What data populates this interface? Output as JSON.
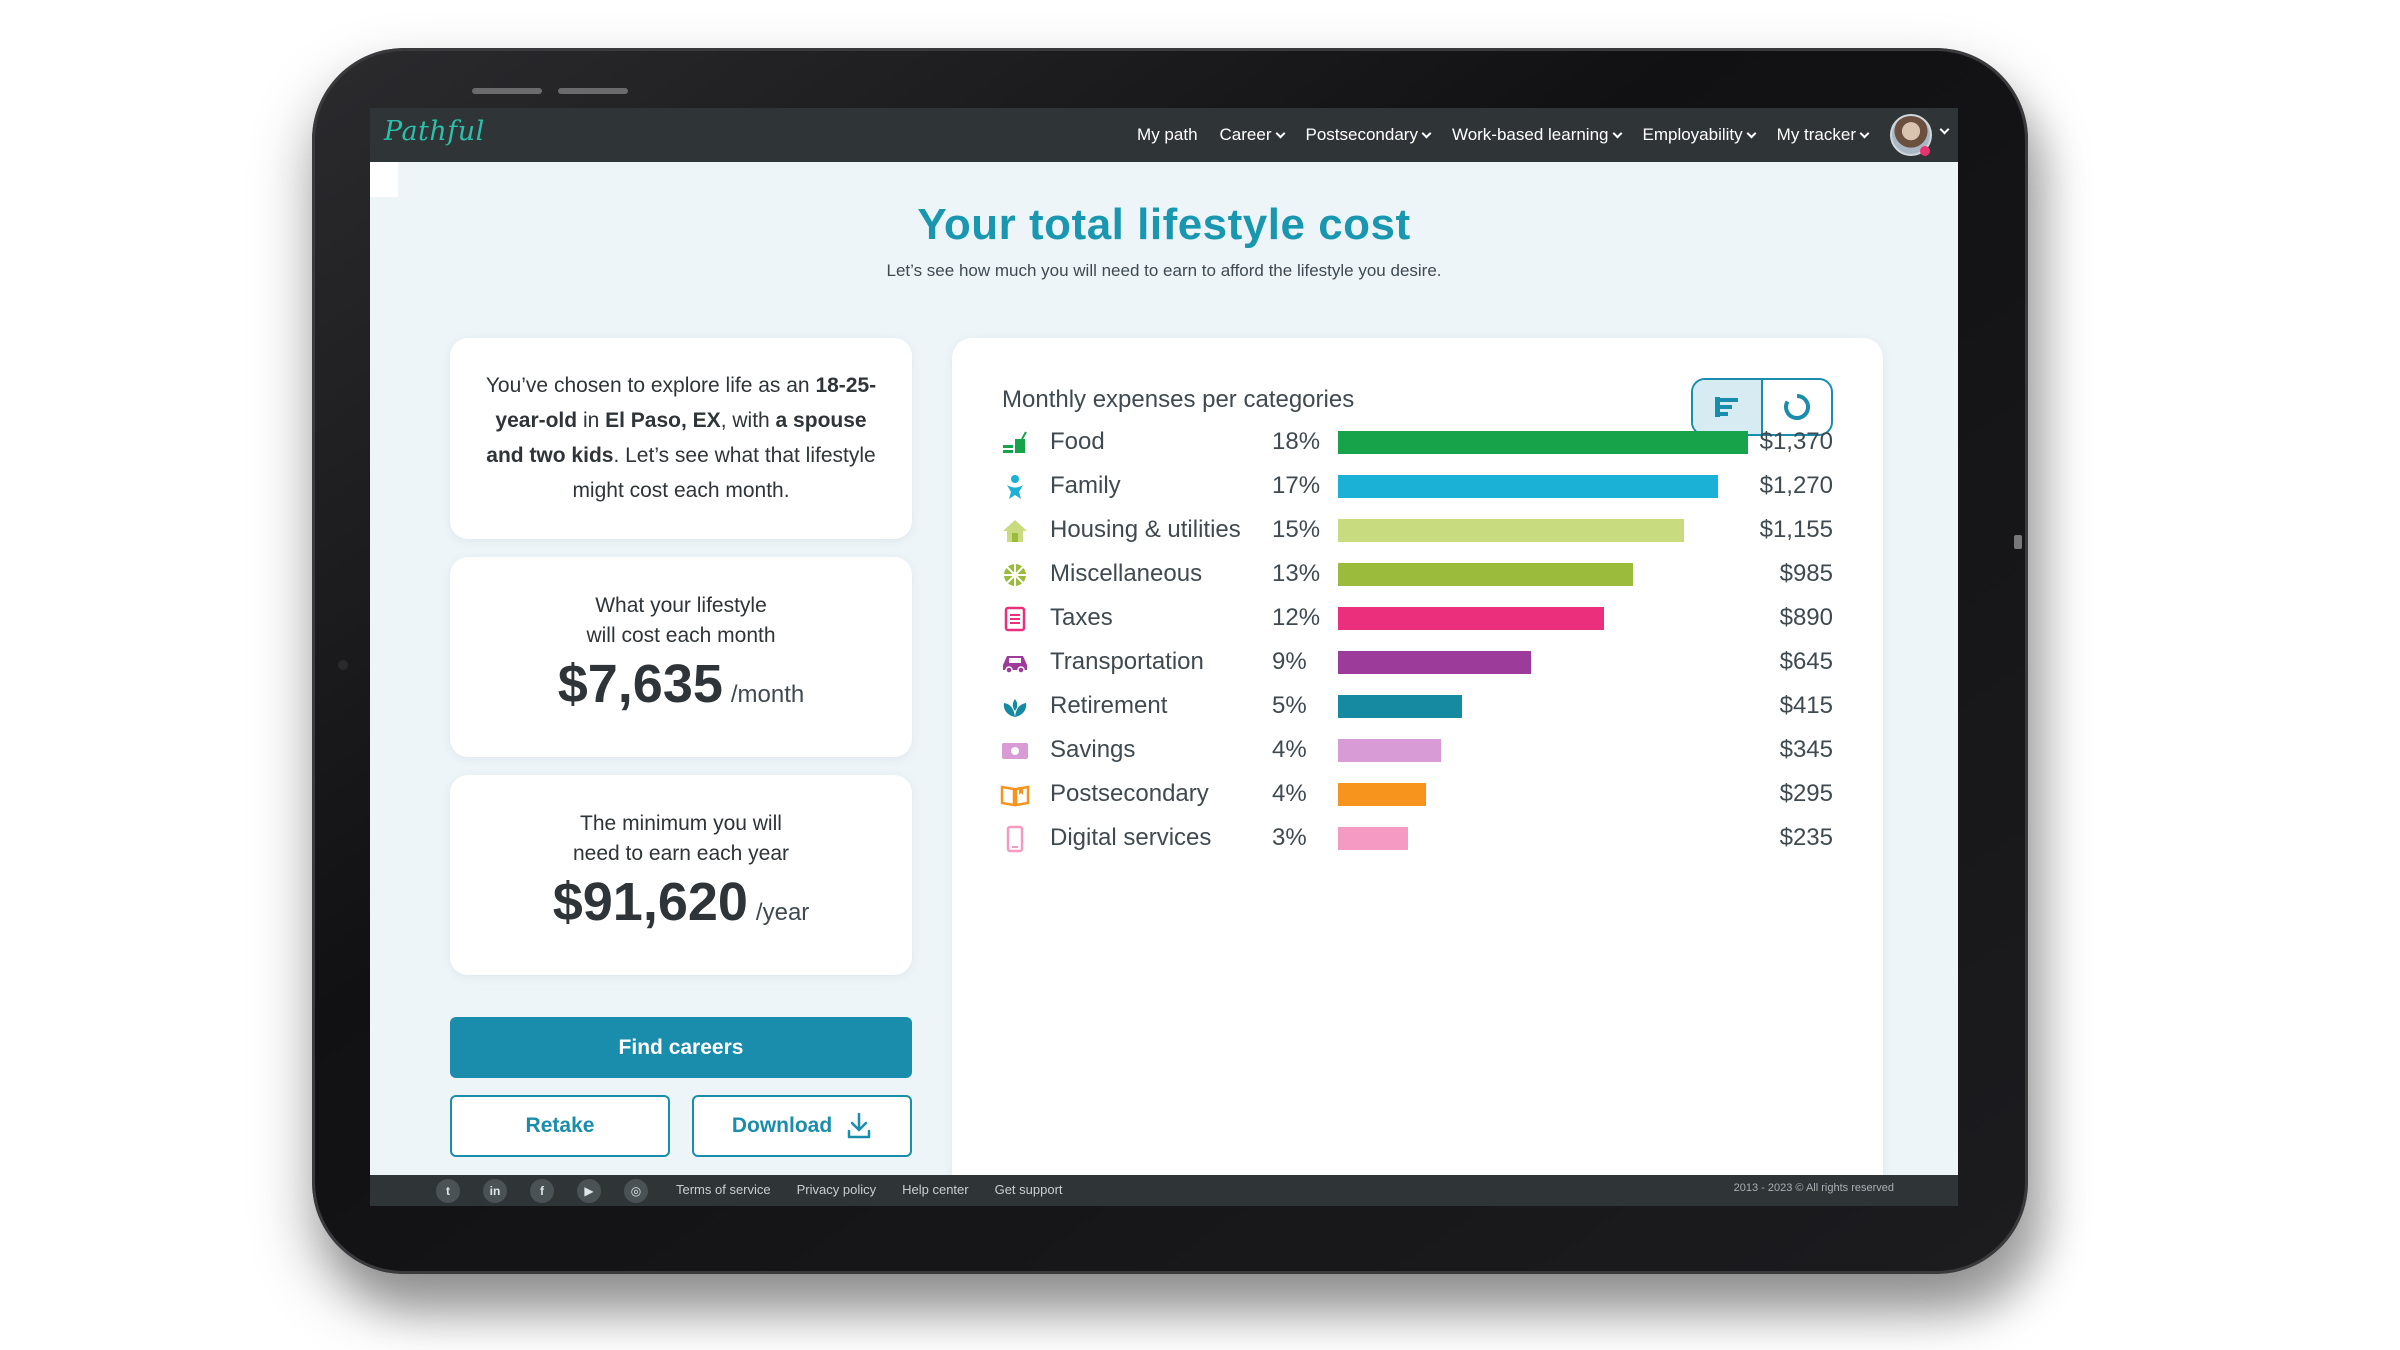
{
  "nav": {
    "logo": "Pathful",
    "items": [
      {
        "label": "My path",
        "dropdown": false
      },
      {
        "label": "Career",
        "dropdown": true
      },
      {
        "label": "Postsecondary",
        "dropdown": true
      },
      {
        "label": "Work-based learning",
        "dropdown": true
      },
      {
        "label": "Employability",
        "dropdown": true
      },
      {
        "label": "My tracker",
        "dropdown": true
      }
    ]
  },
  "header": {
    "title": "Your total lifestyle cost",
    "subtitle": "Let’s see how much you will need to earn to afford the lifestyle you desire."
  },
  "intro": {
    "t1": "You’ve chosen to explore life as an ",
    "age": "18-25-year-old",
    "t2": " in ",
    "city": "El Paso, EX",
    "t3": ", with ",
    "family": "a spouse and two kids",
    "t4": ".  Let’s see what that lifestyle might cost each month."
  },
  "monthly": {
    "label": "What your lifestyle will cost each month",
    "amount": "$7,635",
    "unit": "/month"
  },
  "yearly": {
    "label": "The minimum you will need to earn each year",
    "amount": "$91,620",
    "unit": "/year"
  },
  "buttons": {
    "find": "Find careers",
    "retake": "Retake",
    "download": "Download"
  },
  "chart_data": {
    "type": "bar",
    "title": "Monthly expenses per categories",
    "view_options": [
      "bar-chart-icon",
      "donut-chart-icon"
    ],
    "active_view": "bar",
    "categories": [
      "Food",
      "Family",
      "Housing & utilities",
      "Miscellaneous",
      "Taxes",
      "Transportation",
      "Retirement",
      "Savings",
      "Postsecondary",
      "Digital services"
    ],
    "percents": [
      "18%",
      "17%",
      "15%",
      "13%",
      "12%",
      "9%",
      "5%",
      "4%",
      "4%",
      "3%"
    ],
    "values": [
      1370,
      1270,
      1155,
      985,
      890,
      645,
      415,
      345,
      295,
      235
    ],
    "value_labels": [
      "$1,370",
      "$1,270",
      "$1,155",
      "$985",
      "$890",
      "$645",
      "$415",
      "$345",
      "$295",
      "$235"
    ],
    "colors": [
      "#16a34a",
      "#1bb1d6",
      "#c8db7e",
      "#9bbb3d",
      "#ec2f7c",
      "#9c3b9a",
      "#158aa0",
      "#d99bd6",
      "#f7941e",
      "#f59ac3"
    ],
    "icons": [
      "food-icon",
      "family-icon",
      "housing-icon",
      "miscellaneous-icon",
      "taxes-icon",
      "transportation-icon",
      "retirement-icon",
      "savings-icon",
      "postsecondary-icon",
      "digital-services-icon"
    ],
    "xlim": [
      0,
      1370
    ]
  },
  "footer": {
    "social": [
      "twitter-icon",
      "linkedin-icon",
      "facebook-icon",
      "youtube-icon",
      "instagram-icon"
    ],
    "links": [
      "Terms of service",
      "Privacy policy",
      "Help center",
      "Get support"
    ],
    "copyright": "2013 - 2023 © All rights reserved"
  }
}
